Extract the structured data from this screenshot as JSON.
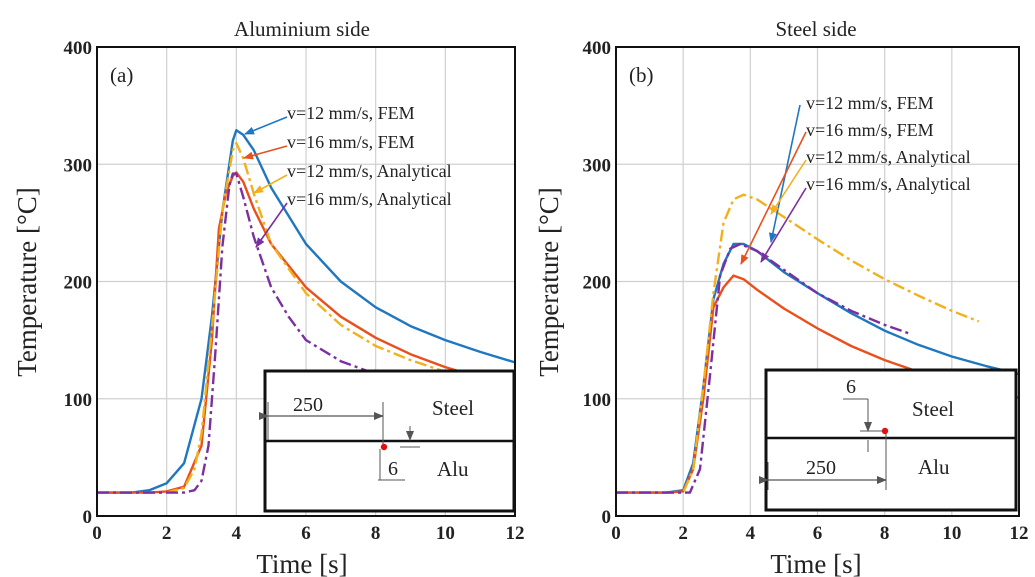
{
  "chart_data": [
    {
      "type": "line",
      "title": "Aluminium side",
      "panel_label": "(a)",
      "xlabel": "Time [s]",
      "ylabel": "Temperature [°C]",
      "xlim": [
        0,
        12
      ],
      "ylim": [
        0,
        400
      ],
      "xticks": [
        "0",
        "2",
        "4",
        "6",
        "8",
        "10",
        "12"
      ],
      "yticks": [
        "0",
        "100",
        "200",
        "300",
        "400"
      ],
      "grid": true,
      "series": [
        {
          "name": "v=12 mm/s, FEM",
          "color": "#1f77c0",
          "style": "solid",
          "x": [
            0,
            1,
            1.5,
            2,
            2.5,
            3,
            3.3,
            3.6,
            3.9,
            4.0,
            4.2,
            4.5,
            5,
            6,
            7,
            8,
            9,
            10,
            11,
            12
          ],
          "y": [
            20,
            20,
            22,
            28,
            45,
            100,
            170,
            260,
            320,
            329,
            325,
            312,
            280,
            232,
            200,
            178,
            162,
            150,
            140,
            131
          ]
        },
        {
          "name": "v=16 mm/s, FEM",
          "color": "#e8501d",
          "style": "solid",
          "x": [
            0,
            1.5,
            2,
            2.5,
            3,
            3.3,
            3.5,
            3.7,
            3.9,
            4.0,
            4.2,
            4.5,
            5,
            6,
            7,
            8,
            9,
            10,
            11,
            12
          ],
          "y": [
            20,
            20,
            21,
            25,
            60,
            150,
            245,
            275,
            290,
            293,
            285,
            262,
            232,
            195,
            170,
            152,
            138,
            127,
            118,
            111
          ]
        },
        {
          "name": "v=12 mm/s, Analytical",
          "color": "#f2b01d",
          "style": "dashdot",
          "x": [
            0,
            2,
            2.5,
            2.8,
            3.0,
            3.3,
            3.6,
            3.9,
            4.0,
            4.2,
            4.5,
            5,
            6,
            7,
            8,
            9,
            10,
            11,
            12
          ],
          "y": [
            20,
            20,
            24,
            40,
            70,
            160,
            260,
            312,
            318,
            305,
            275,
            232,
            190,
            163,
            145,
            133,
            123,
            117,
            112
          ]
        },
        {
          "name": "v=16 mm/s, Analytical",
          "color": "#7b2fa0",
          "style": "dashdot",
          "x": [
            0,
            2.5,
            2.8,
            3.0,
            3.2,
            3.4,
            3.6,
            3.8,
            3.9,
            4.0,
            4.2,
            4.5,
            5,
            5.5,
            6,
            7,
            8
          ],
          "y": [
            20,
            20,
            22,
            30,
            60,
            140,
            230,
            282,
            292,
            292,
            272,
            238,
            195,
            170,
            150,
            132,
            121
          ]
        }
      ],
      "inset": {
        "top_label": "Steel",
        "bottom_label": "Alu",
        "dim_horizontal": "250",
        "dim_vertical": "6"
      }
    },
    {
      "type": "line",
      "title": "Steel side",
      "panel_label": "(b)",
      "xlabel": "Time [s]",
      "ylabel": "Temperature [°C]",
      "xlim": [
        0,
        12
      ],
      "ylim": [
        0,
        400
      ],
      "xticks": [
        "0",
        "2",
        "4",
        "6",
        "8",
        "10",
        "12"
      ],
      "yticks": [
        "0",
        "100",
        "200",
        "300",
        "400"
      ],
      "grid": true,
      "series": [
        {
          "name": "v=12 mm/s, FEM",
          "color": "#1f77c0",
          "style": "solid",
          "x": [
            0,
            1.5,
            2.0,
            2.3,
            2.6,
            2.9,
            3.2,
            3.5,
            3.8,
            4.2,
            5,
            6,
            7,
            8,
            9,
            10,
            11,
            12
          ],
          "y": [
            20,
            20,
            22,
            45,
            110,
            185,
            215,
            232,
            232,
            226,
            208,
            190,
            173,
            158,
            146,
            136,
            128,
            121
          ]
        },
        {
          "name": "v=16 mm/s, FEM",
          "color": "#e8501d",
          "style": "solid",
          "x": [
            0,
            1.5,
            2.0,
            2.3,
            2.6,
            2.9,
            3.2,
            3.5,
            3.8,
            4.2,
            5,
            6,
            7,
            8,
            9,
            10,
            11,
            12
          ],
          "y": [
            20,
            20,
            21,
            40,
            100,
            178,
            195,
            205,
            202,
            193,
            177,
            160,
            145,
            133,
            123,
            114,
            107,
            101
          ]
        },
        {
          "name": "v=12 mm/s, Analytical",
          "color": "#f2b01d",
          "style": "dashdot",
          "x": [
            0,
            2.0,
            2.3,
            2.6,
            2.9,
            3.2,
            3.5,
            3.8,
            4.2,
            5,
            6,
            7,
            8,
            9,
            10,
            10.8
          ],
          "y": [
            20,
            20,
            40,
            110,
            190,
            250,
            270,
            274,
            270,
            255,
            236,
            218,
            202,
            188,
            175,
            166
          ]
        },
        {
          "name": "v=16 mm/s, Analytical",
          "color": "#7b2fa0",
          "style": "dashdot",
          "x": [
            0,
            2.2,
            2.5,
            2.8,
            3.1,
            3.4,
            3.7,
            4.2,
            5,
            6,
            7,
            8,
            8.7
          ],
          "y": [
            20,
            20,
            40,
            120,
            205,
            228,
            232,
            226,
            210,
            190,
            175,
            163,
            156
          ]
        }
      ],
      "inset": {
        "top_label": "Steel",
        "bottom_label": "Alu",
        "dim_horizontal": "250",
        "dim_vertical": "6"
      }
    }
  ]
}
